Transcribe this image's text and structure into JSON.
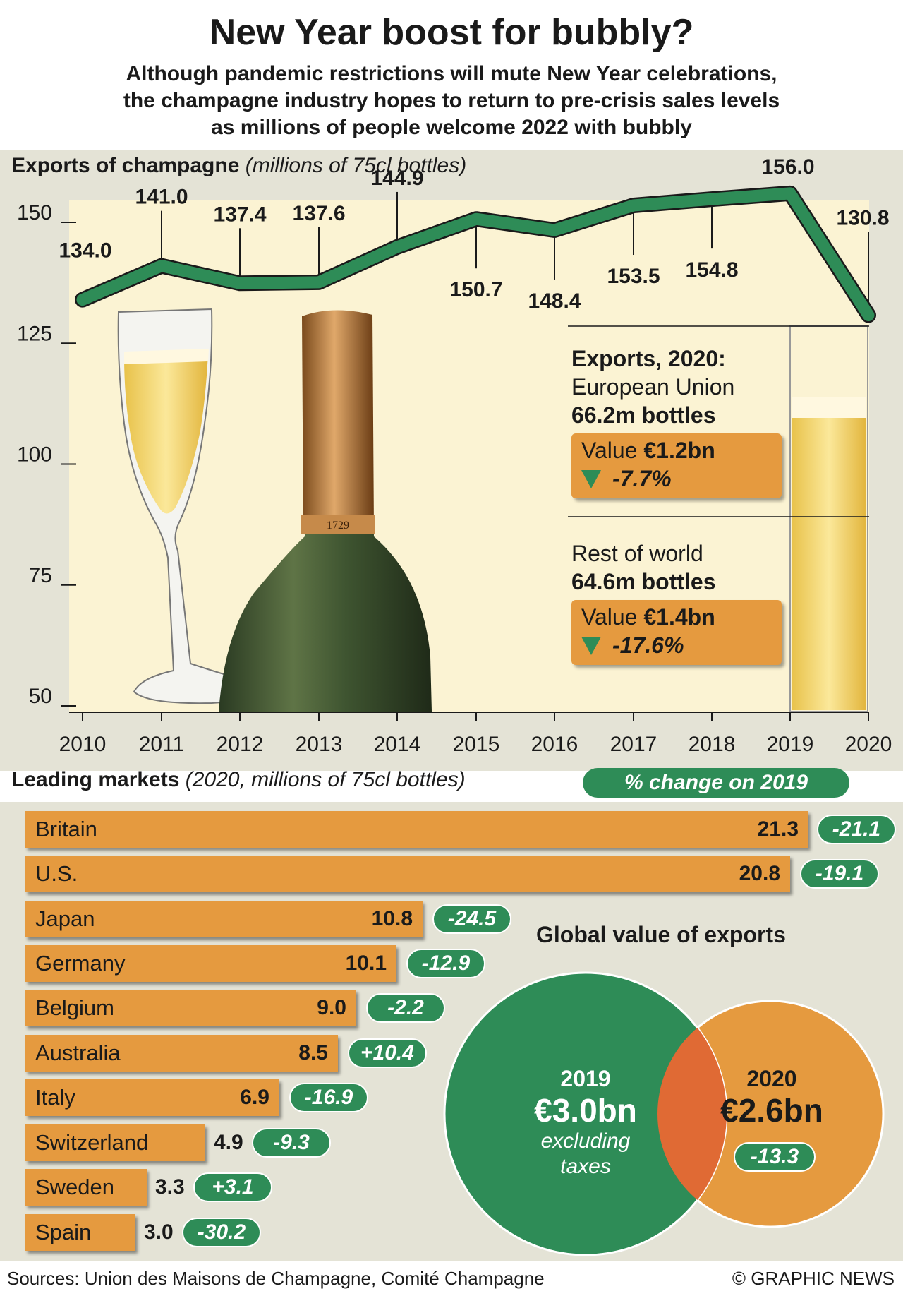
{
  "title": "New Year boost for bubbly?",
  "subtitle": {
    "line1": "Although pandemic restrictions will mute New Year celebrations,",
    "line2": "the champagne industry hopes to return to pre-crisis sales levels",
    "line3": "as millions of people welcome 2022 with bubbly"
  },
  "colors": {
    "green": "#2e8c57",
    "orange": "#e59a3f",
    "panel": "#e4e3d6",
    "cream": "#fbf3d3",
    "overlap": "#e06a34"
  },
  "chart_data": [
    {
      "type": "line",
      "title": "Exports of champagne",
      "unit": "(millions of 75cl bottles)",
      "x": [
        "2010",
        "2011",
        "2012",
        "2013",
        "2014",
        "2015",
        "2016",
        "2017",
        "2018",
        "2019",
        "2020"
      ],
      "values": [
        134.0,
        141.0,
        137.4,
        137.6,
        144.9,
        150.7,
        148.4,
        153.5,
        154.8,
        156.0,
        130.8
      ],
      "value_labels": [
        "134.0",
        "141.0",
        "137.4",
        "137.6",
        "144.9",
        "150.7",
        "148.4",
        "153.5",
        "154.8",
        "156.0",
        "130.8"
      ],
      "ylim": [
        50,
        162
      ],
      "y_ticks": [
        "150",
        "125",
        "100",
        "75",
        "50"
      ],
      "y_tick_values": [
        150,
        125,
        100,
        75,
        50
      ],
      "grid": false
    },
    {
      "type": "bar",
      "orientation": "horizontal",
      "title": "Leading markets",
      "unit": "(2020, millions of 75cl bottles)",
      "change_title": "% change on 2019",
      "categories": [
        "Britain",
        "U.S.",
        "Japan",
        "Germany",
        "Belgium",
        "Australia",
        "Italy",
        "Switzerland",
        "Sweden",
        "Spain"
      ],
      "values": [
        21.3,
        20.8,
        10.8,
        10.1,
        9.0,
        8.5,
        6.9,
        4.9,
        3.3,
        3.0
      ],
      "value_labels": [
        "21.3",
        "20.8",
        "10.8",
        "10.1",
        "9.0",
        "8.5",
        "6.9",
        "4.9",
        "3.3",
        "3.0"
      ],
      "change": [
        "-21.1",
        "-19.1",
        "-24.5",
        "-12.9",
        "-2.2",
        "+10.4",
        "-16.9",
        "-9.3",
        "+3.1",
        "-30.2"
      ]
    }
  ],
  "exports_2020": {
    "heading": "Exports, 2020:",
    "eu": {
      "label": "European Union",
      "bottles": "66.2m bottles",
      "value_prefix": "Value",
      "value": "€1.2bn",
      "change": "-7.7%"
    },
    "row": {
      "label": "Rest of world",
      "bottles": "64.6m bottles",
      "value_prefix": "Value",
      "value": "€1.4bn",
      "change": "-17.6%"
    }
  },
  "global": {
    "title": "Global value of exports",
    "y2019": {
      "year": "2019",
      "value": "€3.0bn",
      "note1": "excluding",
      "note2": "taxes"
    },
    "y2020": {
      "year": "2020",
      "value": "€2.6bn",
      "change": "-13.3"
    }
  },
  "footer": {
    "source": "Sources: Union des Maisons de Champagne, Comité Champagne",
    "credit": "© GRAPHIC NEWS"
  }
}
